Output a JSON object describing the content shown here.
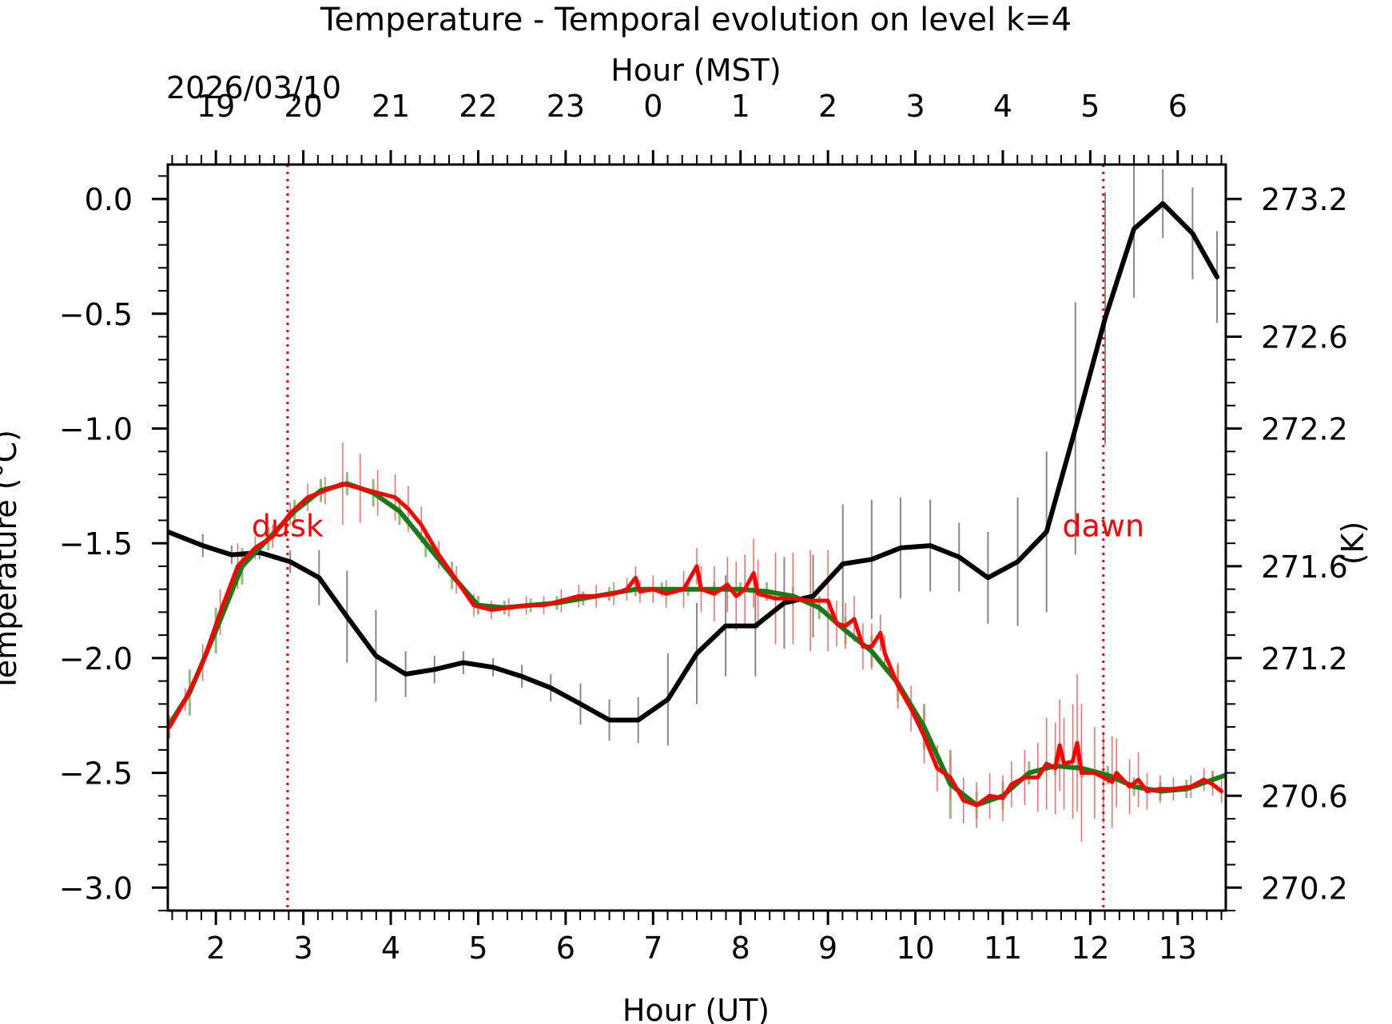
{
  "chart_data": {
    "type": "line",
    "title": "Temperature - Temporal evolution on level k=4",
    "top_axis_label": "Hour (MST)",
    "date_label": "2026/03/10",
    "xlabel": "Hour (UT)",
    "ylabel": "Temperature (°C)",
    "ylabel_right": "(K)",
    "xlim": [
      1.45,
      13.55
    ],
    "ylim": [
      -3.1,
      0.15
    ],
    "x_ticks": [
      2,
      3,
      4,
      5,
      6,
      7,
      8,
      9,
      10,
      11,
      12,
      13
    ],
    "x_tick_labels": [
      "2",
      "3",
      "4",
      "5",
      "6",
      "7",
      "8",
      "9",
      "10",
      "11",
      "12",
      "13"
    ],
    "y_ticks": [
      0.0,
      -0.5,
      -1.0,
      -1.5,
      -2.0,
      -2.5,
      -3.0
    ],
    "y_tick_labels": [
      "0.0",
      "−0.5",
      "−1.0",
      "−1.5",
      "−2.0",
      "−2.5",
      "−3.0"
    ],
    "top_ticks": [
      2,
      3,
      4,
      5,
      6,
      7,
      8,
      9,
      10,
      11,
      12,
      13
    ],
    "top_tick_labels": [
      "19",
      "20",
      "21",
      "22",
      "23",
      "0",
      "1",
      "2",
      "3",
      "4",
      "5",
      "6"
    ],
    "right_ticks": [
      270.2,
      270.6,
      271.2,
      271.6,
      272.2,
      272.6,
      273.2
    ],
    "right_tick_labels": [
      "270.2",
      "270.6",
      "271.2",
      "271.6",
      "272.2",
      "272.6",
      "273.2"
    ],
    "vlines": [
      {
        "x": 2.82,
        "label": "dusk"
      },
      {
        "x": 12.15,
        "label": "dawn"
      }
    ],
    "colors": {
      "black_series": "#000000",
      "green_series": "#1a7a1a",
      "green_errorbars": "#8fbf7a",
      "red_series": "#ff0000",
      "red_errorbars": "#ff6666",
      "black_errorbars": "#888888",
      "vline": "#ff0000"
    },
    "series": [
      {
        "name": "black",
        "color": "#000000",
        "points": [
          [
            1.45,
            -1.45,
            0.07
          ],
          [
            1.85,
            -1.51,
            0.05
          ],
          [
            2.18,
            -1.55,
            0.04
          ],
          [
            2.5,
            -1.54,
            0.03
          ],
          [
            2.85,
            -1.58,
            0.05
          ],
          [
            3.18,
            -1.65,
            0.12
          ],
          [
            3.5,
            -1.82,
            0.2
          ],
          [
            3.83,
            -1.99,
            0.2
          ],
          [
            4.17,
            -2.07,
            0.1
          ],
          [
            4.5,
            -2.05,
            0.06
          ],
          [
            4.83,
            -2.02,
            0.05
          ],
          [
            5.17,
            -2.04,
            0.04
          ],
          [
            5.5,
            -2.08,
            0.05
          ],
          [
            5.83,
            -2.13,
            0.06
          ],
          [
            6.17,
            -2.2,
            0.09
          ],
          [
            6.5,
            -2.27,
            0.09
          ],
          [
            6.83,
            -2.27,
            0.1
          ],
          [
            7.17,
            -2.18,
            0.2
          ],
          [
            7.5,
            -1.98,
            0.22
          ],
          [
            7.83,
            -1.86,
            0.22
          ],
          [
            8.17,
            -1.86,
            0.22
          ],
          [
            8.5,
            -1.76,
            0.2
          ],
          [
            8.83,
            -1.73,
            0.18
          ],
          [
            9.17,
            -1.59,
            0.26
          ],
          [
            9.5,
            -1.57,
            0.26
          ],
          [
            9.83,
            -1.52,
            0.22
          ],
          [
            10.17,
            -1.51,
            0.2
          ],
          [
            10.5,
            -1.56,
            0.15
          ],
          [
            10.83,
            -1.65,
            0.2
          ],
          [
            11.17,
            -1.58,
            0.28
          ],
          [
            11.5,
            -1.45,
            0.35
          ],
          [
            11.83,
            -1.0,
            0.55
          ],
          [
            12.17,
            -0.52,
            0.55
          ],
          [
            12.5,
            -0.13,
            0.3
          ],
          [
            12.83,
            -0.02,
            0.15
          ],
          [
            13.17,
            -0.15,
            0.2
          ],
          [
            13.45,
            -0.34,
            0.2
          ]
        ]
      },
      {
        "name": "green",
        "color": "#1a7a1a",
        "points": [
          [
            1.45,
            -2.3,
            0.05
          ],
          [
            1.7,
            -2.15,
            0.1
          ],
          [
            2.0,
            -1.88,
            0.1
          ],
          [
            2.3,
            -1.6,
            0.08
          ],
          [
            2.6,
            -1.48,
            0.05
          ],
          [
            2.9,
            -1.36,
            0.05
          ],
          [
            3.2,
            -1.27,
            0.05
          ],
          [
            3.5,
            -1.24,
            0.05
          ],
          [
            3.8,
            -1.28,
            0.06
          ],
          [
            4.1,
            -1.36,
            0.06
          ],
          [
            4.4,
            -1.5,
            0.06
          ],
          [
            4.7,
            -1.64,
            0.06
          ],
          [
            5.0,
            -1.77,
            0.04
          ],
          [
            5.3,
            -1.78,
            0.03
          ],
          [
            5.6,
            -1.77,
            0.03
          ],
          [
            5.9,
            -1.76,
            0.03
          ],
          [
            6.2,
            -1.74,
            0.03
          ],
          [
            6.5,
            -1.72,
            0.03
          ],
          [
            6.8,
            -1.7,
            0.03
          ],
          [
            7.1,
            -1.7,
            0.03
          ],
          [
            7.4,
            -1.7,
            0.03
          ],
          [
            7.7,
            -1.7,
            0.03
          ],
          [
            8.0,
            -1.7,
            0.03
          ],
          [
            8.3,
            -1.71,
            0.04
          ],
          [
            8.6,
            -1.73,
            0.04
          ],
          [
            8.9,
            -1.78,
            0.05
          ],
          [
            9.2,
            -1.88,
            0.06
          ],
          [
            9.5,
            -1.97,
            0.07
          ],
          [
            9.8,
            -2.11,
            0.08
          ],
          [
            10.1,
            -2.3,
            0.1
          ],
          [
            10.4,
            -2.55,
            0.15
          ],
          [
            10.7,
            -2.64,
            0.06
          ],
          [
            11.0,
            -2.6,
            0.06
          ],
          [
            11.3,
            -2.5,
            0.05
          ],
          [
            11.6,
            -2.47,
            0.04
          ],
          [
            11.9,
            -2.48,
            0.04
          ],
          [
            12.2,
            -2.51,
            0.04
          ],
          [
            12.5,
            -2.56,
            0.04
          ],
          [
            12.8,
            -2.58,
            0.04
          ],
          [
            13.1,
            -2.57,
            0.04
          ],
          [
            13.4,
            -2.53,
            0.04
          ],
          [
            13.55,
            -2.51,
            0.03
          ]
        ]
      },
      {
        "name": "red",
        "color": "#ff0000",
        "points": [
          [
            1.47,
            -2.3,
            0.05
          ],
          [
            1.65,
            -2.18,
            0.05
          ],
          [
            1.85,
            -2.02,
            0.08
          ],
          [
            2.05,
            -1.8,
            0.1
          ],
          [
            2.25,
            -1.6,
            0.1
          ],
          [
            2.45,
            -1.52,
            0.05
          ],
          [
            2.65,
            -1.47,
            0.05
          ],
          [
            2.85,
            -1.37,
            0.05
          ],
          [
            3.05,
            -1.3,
            0.06
          ],
          [
            3.25,
            -1.27,
            0.06
          ],
          [
            3.45,
            -1.24,
            0.18
          ],
          [
            3.65,
            -1.26,
            0.15
          ],
          [
            3.85,
            -1.28,
            0.1
          ],
          [
            4.05,
            -1.3,
            0.1
          ],
          [
            4.2,
            -1.35,
            0.1
          ],
          [
            4.35,
            -1.42,
            0.08
          ],
          [
            4.55,
            -1.55,
            0.06
          ],
          [
            4.75,
            -1.66,
            0.06
          ],
          [
            4.95,
            -1.77,
            0.05
          ],
          [
            5.15,
            -1.79,
            0.04
          ],
          [
            5.35,
            -1.78,
            0.04
          ],
          [
            5.55,
            -1.77,
            0.04
          ],
          [
            5.75,
            -1.77,
            0.04
          ],
          [
            5.95,
            -1.75,
            0.05
          ],
          [
            6.15,
            -1.73,
            0.05
          ],
          [
            6.35,
            -1.73,
            0.05
          ],
          [
            6.55,
            -1.72,
            0.05
          ],
          [
            6.7,
            -1.7,
            0.05
          ],
          [
            6.8,
            -1.65,
            0.05
          ],
          [
            6.85,
            -1.71,
            0.05
          ],
          [
            7.0,
            -1.7,
            0.06
          ],
          [
            7.15,
            -1.72,
            0.06
          ],
          [
            7.35,
            -1.7,
            0.08
          ],
          [
            7.5,
            -1.6,
            0.08
          ],
          [
            7.55,
            -1.7,
            0.1
          ],
          [
            7.7,
            -1.72,
            0.12
          ],
          [
            7.85,
            -1.68,
            0.12
          ],
          [
            7.95,
            -1.73,
            0.15
          ],
          [
            8.05,
            -1.7,
            0.15
          ],
          [
            8.15,
            -1.63,
            0.15
          ],
          [
            8.2,
            -1.72,
            0.15
          ],
          [
            8.4,
            -1.74,
            0.2
          ],
          [
            8.6,
            -1.74,
            0.2
          ],
          [
            8.8,
            -1.75,
            0.22
          ],
          [
            9.0,
            -1.75,
            0.22
          ],
          [
            9.1,
            -1.85,
            0.1
          ],
          [
            9.2,
            -1.86,
            0.1
          ],
          [
            9.3,
            -1.83,
            0.1
          ],
          [
            9.4,
            -1.95,
            0.1
          ],
          [
            9.5,
            -1.95,
            0.1
          ],
          [
            9.6,
            -1.89,
            0.08
          ],
          [
            9.65,
            -1.98,
            0.08
          ],
          [
            9.8,
            -2.12,
            0.1
          ],
          [
            9.95,
            -2.22,
            0.1
          ],
          [
            10.1,
            -2.34,
            0.12
          ],
          [
            10.25,
            -2.48,
            0.1
          ],
          [
            10.4,
            -2.52,
            0.1
          ],
          [
            10.55,
            -2.62,
            0.1
          ],
          [
            10.7,
            -2.64,
            0.1
          ],
          [
            10.85,
            -2.6,
            0.1
          ],
          [
            11.0,
            -2.61,
            0.1
          ],
          [
            11.1,
            -2.55,
            0.1
          ],
          [
            11.25,
            -2.52,
            0.12
          ],
          [
            11.4,
            -2.52,
            0.15
          ],
          [
            11.5,
            -2.46,
            0.2
          ],
          [
            11.6,
            -2.48,
            0.2
          ],
          [
            11.65,
            -2.38,
            0.2
          ],
          [
            11.7,
            -2.46,
            0.2
          ],
          [
            11.8,
            -2.45,
            0.25
          ],
          [
            11.85,
            -2.37,
            0.3
          ],
          [
            11.9,
            -2.5,
            0.3
          ],
          [
            12.05,
            -2.5,
            0.2
          ],
          [
            12.15,
            -2.52,
            0.2
          ],
          [
            12.25,
            -2.54,
            0.2
          ],
          [
            12.3,
            -2.5,
            0.15
          ],
          [
            12.45,
            -2.56,
            0.12
          ],
          [
            12.55,
            -2.53,
            0.12
          ],
          [
            12.65,
            -2.58,
            0.08
          ],
          [
            12.8,
            -2.57,
            0.06
          ],
          [
            12.95,
            -2.57,
            0.05
          ],
          [
            13.15,
            -2.56,
            0.05
          ],
          [
            13.3,
            -2.53,
            0.05
          ],
          [
            13.4,
            -2.55,
            0.05
          ],
          [
            13.5,
            -2.58,
            0.05
          ]
        ]
      }
    ]
  }
}
